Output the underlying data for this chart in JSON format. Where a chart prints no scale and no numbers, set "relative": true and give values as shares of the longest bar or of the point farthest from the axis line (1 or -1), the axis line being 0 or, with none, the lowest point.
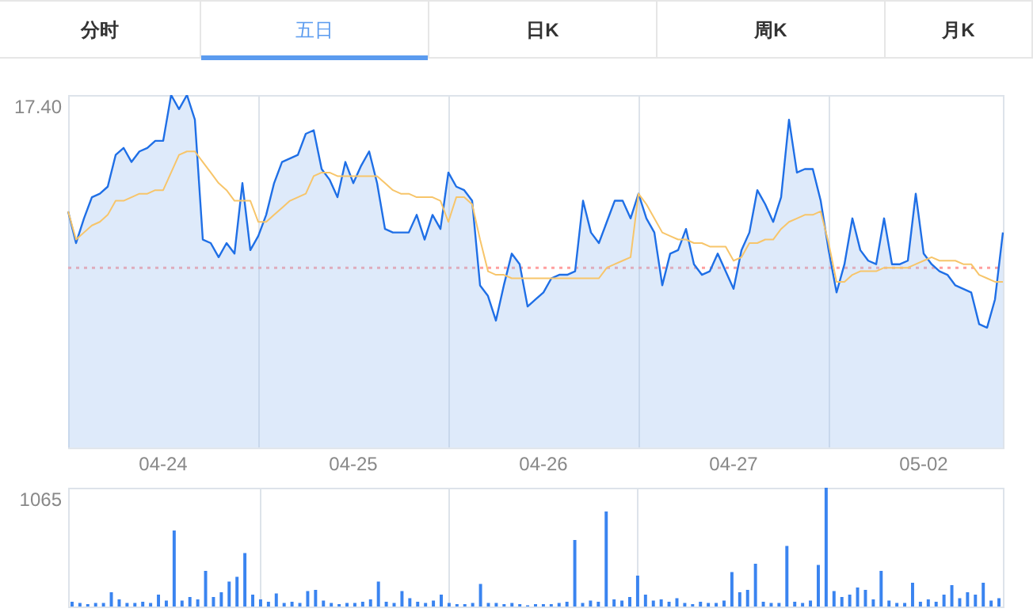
{
  "chart_data": [
    {
      "type": "other",
      "annotations": [
        "分时",
        "五日",
        "日K",
        "周K",
        "月K"
      ]
    },
    {
      "type": "area",
      "relative": true,
      "grid": "x",
      "annotations": [
        "17.40"
      ],
      "categories": [
        null,
        null,
        null,
        null,
        null,
        null,
        null,
        null,
        null,
        null,
        null,
        null,
        "04-24",
        null,
        null,
        null,
        null,
        null,
        null,
        null,
        null,
        null,
        null,
        null,
        null,
        null,
        null,
        null,
        null,
        null,
        null,
        null,
        null,
        null,
        null,
        null,
        "04-25",
        null,
        null,
        null,
        null,
        null,
        null,
        null,
        null,
        null,
        null,
        null,
        null,
        null,
        null,
        null,
        null,
        null,
        null,
        null,
        null,
        null,
        null,
        null,
        "04-26",
        null,
        null,
        null,
        null,
        null,
        null,
        null,
        null,
        null,
        null,
        null,
        null,
        null,
        null,
        null,
        null,
        null,
        null,
        null,
        null,
        null,
        null,
        null,
        "04-27",
        null,
        null,
        null,
        null,
        null,
        null,
        null,
        null,
        null,
        null,
        null,
        null,
        null,
        null,
        null,
        null,
        null,
        null,
        null,
        null,
        null,
        null,
        null,
        "05-02",
        null,
        null,
        null,
        null,
        null,
        null,
        null,
        null,
        null,
        null
      ],
      "ref_lines": [
        {
          "axis": "y",
          "value": 0.51,
          "color": "#ffa0a0",
          "line_style": "dotted"
        }
      ],
      "series": [
        {
          "type": "area",
          "color": "#1f6fe6",
          "values": [
            0.67,
            0.58,
            0.65,
            0.71,
            0.72,
            0.74,
            0.83,
            0.85,
            0.81,
            0.84,
            0.85,
            0.87,
            0.87,
            1.0,
            0.96,
            1.0,
            0.93,
            0.59,
            0.58,
            0.54,
            0.58,
            0.55,
            0.75,
            0.56,
            0.6,
            0.66,
            0.75,
            0.81,
            0.82,
            0.83,
            0.89,
            0.9,
            0.79,
            0.76,
            0.71,
            0.81,
            0.75,
            0.8,
            0.84,
            0.75,
            0.62,
            0.61,
            0.61,
            0.61,
            0.66,
            0.59,
            0.66,
            0.62,
            0.78,
            0.74,
            0.73,
            0.7,
            0.46,
            0.43,
            0.36,
            0.46,
            0.55,
            0.52,
            0.4,
            0.42,
            0.44,
            0.48,
            0.49,
            0.49,
            0.5,
            0.7,
            0.61,
            0.58,
            0.64,
            0.7,
            0.7,
            0.65,
            0.72,
            0.65,
            0.61,
            0.46,
            0.55,
            0.56,
            0.62,
            0.52,
            0.49,
            0.5,
            0.55,
            0.5,
            0.45,
            0.56,
            0.61,
            0.73,
            0.69,
            0.64,
            0.71,
            0.93,
            0.78,
            0.79,
            0.79,
            0.7,
            0.56,
            0.44,
            0.52,
            0.65,
            0.56,
            0.53,
            0.52,
            0.65,
            0.52,
            0.52,
            0.53,
            0.72,
            0.55,
            0.52,
            0.5,
            0.49,
            0.46,
            0.45,
            0.44,
            0.35,
            0.34,
            0.42,
            0.61
          ]
        },
        {
          "type": "line",
          "color": "#f7c56a",
          "values": [
            0.67,
            0.59,
            0.61,
            0.63,
            0.64,
            0.66,
            0.7,
            0.7,
            0.71,
            0.72,
            0.72,
            0.73,
            0.73,
            0.78,
            0.83,
            0.84,
            0.84,
            0.81,
            0.78,
            0.75,
            0.73,
            0.7,
            0.7,
            0.7,
            0.64,
            0.64,
            0.66,
            0.68,
            0.7,
            0.71,
            0.72,
            0.77,
            0.78,
            0.78,
            0.77,
            0.77,
            0.77,
            0.77,
            0.77,
            0.77,
            0.75,
            0.73,
            0.72,
            0.72,
            0.71,
            0.71,
            0.71,
            0.7,
            0.64,
            0.71,
            0.71,
            0.69,
            0.59,
            0.5,
            0.49,
            0.49,
            0.48,
            0.48,
            0.48,
            0.48,
            0.48,
            0.48,
            0.48,
            0.48,
            0.48,
            0.48,
            0.48,
            0.48,
            0.51,
            0.52,
            0.53,
            0.54,
            0.72,
            0.69,
            0.65,
            0.61,
            0.6,
            0.59,
            0.59,
            0.58,
            0.58,
            0.57,
            0.57,
            0.57,
            0.53,
            0.54,
            0.58,
            0.58,
            0.59,
            0.59,
            0.62,
            0.64,
            0.65,
            0.66,
            0.66,
            0.67,
            0.58,
            0.47,
            0.47,
            0.49,
            0.5,
            0.5,
            0.5,
            0.51,
            0.51,
            0.51,
            0.51,
            0.52,
            0.53,
            0.54,
            0.53,
            0.53,
            0.53,
            0.52,
            0.52,
            0.49,
            0.48,
            0.47,
            0.47
          ]
        }
      ]
    },
    {
      "type": "bar",
      "relative": true,
      "grid": "x",
      "color": "#3a84f0",
      "annotations": [
        "1065"
      ],
      "categories": [
        null,
        null,
        null,
        null,
        null,
        null,
        null,
        null,
        null,
        null,
        null,
        null,
        null,
        null,
        null,
        null,
        null,
        null,
        null,
        null,
        null,
        null,
        null,
        null,
        null,
        null,
        null,
        null,
        null,
        null,
        null,
        null,
        null,
        null,
        null,
        null,
        null,
        null,
        null,
        null,
        null,
        null,
        null,
        null,
        null,
        null,
        null,
        null,
        null,
        null,
        null,
        null,
        null,
        null,
        null,
        null,
        null,
        null,
        null,
        null,
        null,
        null,
        null,
        null,
        null,
        null,
        null,
        null,
        null,
        null,
        null,
        null,
        null,
        null,
        null,
        null,
        null,
        null,
        null,
        null,
        null,
        null,
        null,
        null,
        null,
        null,
        null,
        null,
        null,
        null,
        null,
        null,
        null,
        null,
        null,
        null,
        null,
        null,
        null,
        null,
        null,
        null,
        null,
        null,
        null,
        null,
        null,
        null,
        null,
        null,
        null,
        null,
        null,
        null,
        null,
        null,
        null,
        null,
        null
      ],
      "values": [
        0.04,
        0.03,
        0.02,
        0.03,
        0.03,
        0.12,
        0.06,
        0.03,
        0.03,
        0.04,
        0.03,
        0.1,
        0.05,
        0.64,
        0.05,
        0.08,
        0.06,
        0.3,
        0.08,
        0.12,
        0.21,
        0.25,
        0.45,
        0.1,
        0.06,
        0.04,
        0.11,
        0.03,
        0.04,
        0.03,
        0.13,
        0.14,
        0.05,
        0.03,
        0.02,
        0.03,
        0.03,
        0.04,
        0.06,
        0.21,
        0.04,
        0.03,
        0.13,
        0.07,
        0.04,
        0.03,
        0.05,
        0.1,
        0.03,
        0.02,
        0.02,
        0.03,
        0.19,
        0.03,
        0.03,
        0.02,
        0.03,
        0.02,
        0.01,
        0.02,
        0.02,
        0.02,
        0.03,
        0.04,
        0.56,
        0.03,
        0.05,
        0.04,
        0.8,
        0.06,
        0.05,
        0.08,
        0.26,
        0.1,
        0.05,
        0.06,
        0.04,
        0.07,
        0.03,
        0.02,
        0.04,
        0.03,
        0.03,
        0.05,
        0.29,
        0.12,
        0.14,
        0.36,
        0.04,
        0.03,
        0.03,
        0.51,
        0.04,
        0.03,
        0.05,
        0.35,
        1.0,
        0.13,
        0.08,
        0.1,
        0.16,
        0.14,
        0.06,
        0.3,
        0.05,
        0.03,
        0.03,
        0.2,
        0.04,
        0.06,
        0.04,
        0.1,
        0.18,
        0.07,
        0.12,
        0.1,
        0.2,
        0.05,
        0.07
      ]
    }
  ]
}
